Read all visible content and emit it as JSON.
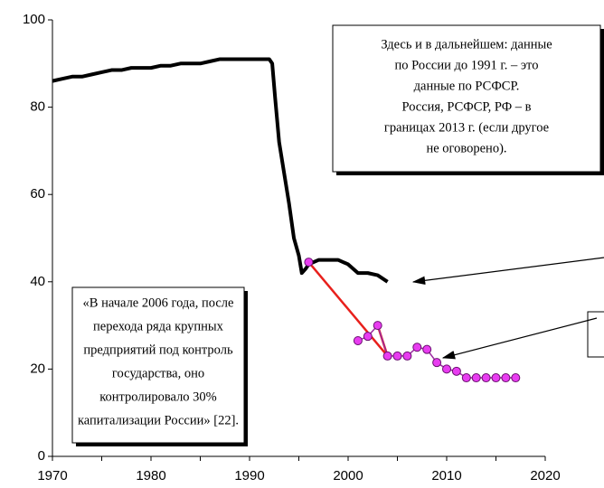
{
  "chart_data": {
    "type": "line",
    "xlim": [
      1970,
      2020
    ],
    "xticks": [
      1970,
      1980,
      1990,
      2000,
      2010,
      2020
    ],
    "xticks_minor": [
      1975,
      1985,
      1995,
      2005,
      2015
    ],
    "ylim": [
      0,
      100
    ],
    "yticks": [
      0,
      20,
      40,
      60,
      80,
      100
    ],
    "series": [
      {
        "color": "#000000",
        "x": [
          1970,
          1971,
          1972,
          1973,
          1974,
          1975,
          1976,
          1977,
          1978,
          1979,
          1980,
          1981,
          1982,
          1983,
          1984,
          1985,
          1986,
          1987,
          1988,
          1989,
          1990,
          1991,
          1992,
          1992.3,
          1992.6,
          1993,
          1993.5,
          1994,
          1994.5,
          1995,
          1995.3,
          1995.7,
          1996,
          1997,
          1998,
          1999,
          2000,
          2001,
          2002,
          2003,
          2004
        ],
        "values": [
          86,
          86.5,
          87,
          87,
          87.5,
          88,
          88.5,
          88.5,
          89,
          89,
          89,
          89.5,
          89.5,
          90,
          90,
          90,
          90.5,
          91,
          91,
          91,
          91,
          91,
          91,
          90,
          82,
          72,
          65,
          58,
          50,
          46,
          42,
          43,
          44,
          45,
          45,
          45,
          44,
          42,
          42,
          41.5,
          40
        ]
      },
      {
        "color": "#e83cf0",
        "x": [
          1996,
          2001,
          2002,
          2003,
          2004,
          2005,
          2006,
          2007,
          2008,
          2009,
          2010,
          2011,
          2012,
          2013,
          2014,
          2015,
          2016,
          2017
        ],
        "values": [
          44.5,
          26.5,
          27.5,
          30,
          23,
          23,
          23,
          25,
          24.5,
          21.5,
          20,
          19.5,
          18,
          18,
          18,
          18,
          18,
          18
        ]
      }
    ],
    "annotations": [
      [
        "Здесь и в дальнейшем: данные",
        "по России до 1991 г. – это",
        "данные по РСФСР.",
        "Россия, РСФСР, РФ – в",
        "границах 2013 г. (если другое",
        "не оговорено)."
      ],
      [
        "«В начале 2006 года, после",
        "перехода ряда крупных",
        "предприятий под контроль",
        "государства, оно",
        "контролировало 30%",
        "капитализации России» [22]."
      ]
    ]
  }
}
